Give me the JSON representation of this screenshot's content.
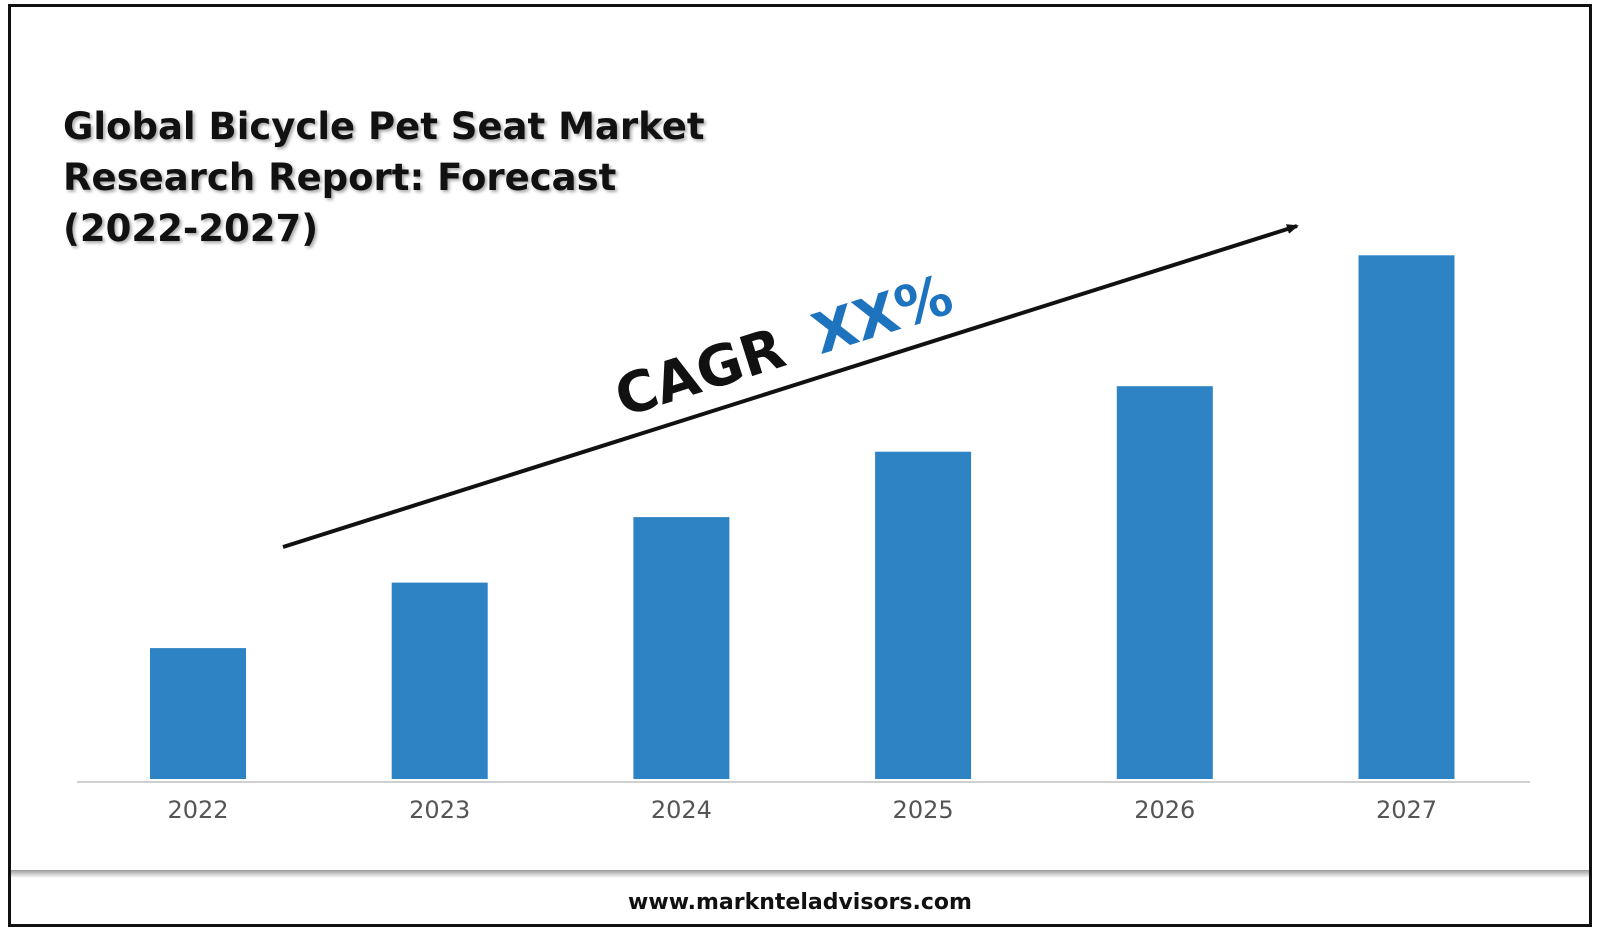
{
  "chart_data": {
    "type": "bar",
    "title_lines": [
      "Global Bicycle Pet Seat Market",
      "Research Report: Forecast",
      "(2022-2027)"
    ],
    "categories": [
      "2022",
      "2023",
      "2024",
      "2025",
      "2026",
      "2027"
    ],
    "values": [
      1.0,
      1.5,
      2.0,
      2.5,
      3.0,
      4.0
    ],
    "bar_color": "#2E83C4",
    "ylim": [
      0,
      4.3
    ],
    "yaxis_shown": false,
    "grid": false,
    "annotation": {
      "text": "CAGR",
      "highlight": "XX%",
      "highlight_color": "#1E73BE",
      "arrow": "upward trend arrow"
    }
  },
  "footer": {
    "url": "www.marknteladvisors.com"
  }
}
